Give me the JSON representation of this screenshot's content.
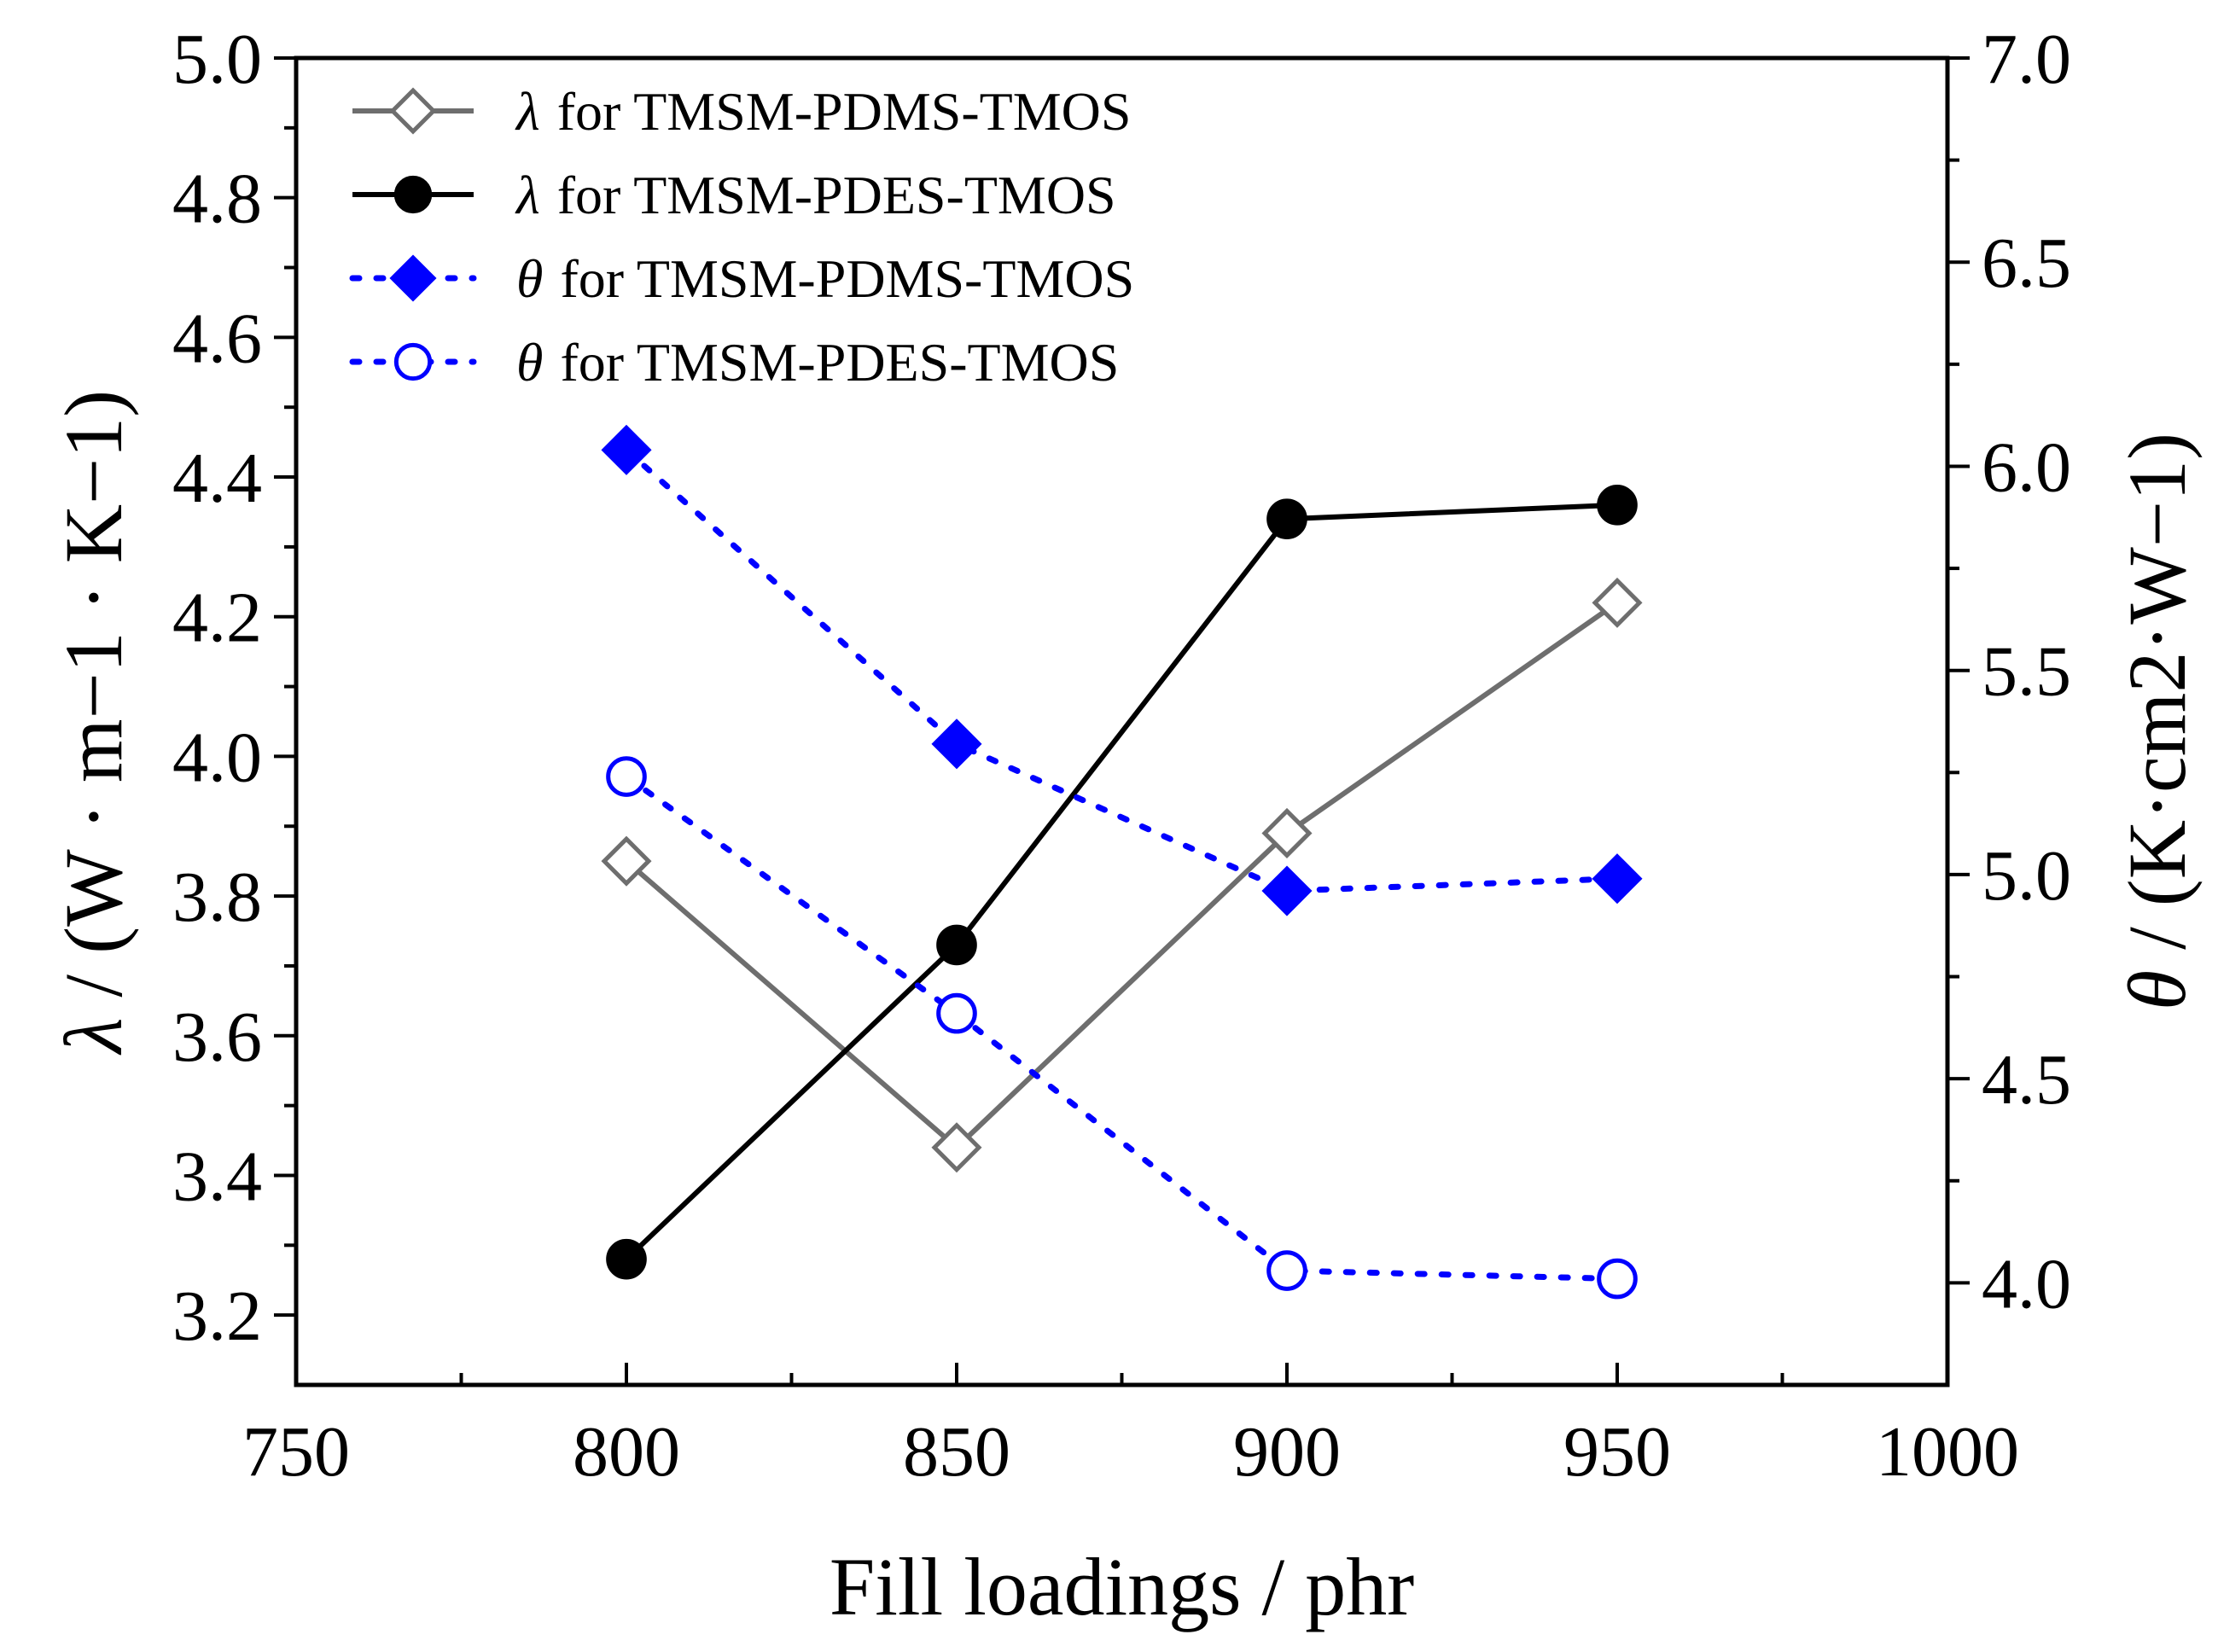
{
  "chart_data": {
    "type": "line",
    "x_axis": {
      "label": "Fill loadings / phr",
      "range": [
        750,
        1000
      ],
      "major_ticks": [
        750,
        800,
        850,
        900,
        950,
        1000
      ],
      "tick_labels": [
        "750",
        "800",
        "850",
        "900",
        "950",
        "1000"
      ],
      "minor_ticks": [
        775,
        825,
        875,
        925,
        975
      ]
    },
    "y_left": {
      "symbol": "λ",
      "label_unit": " / (W · m−1 · K−1)",
      "label_full": "λ / (W·m−1·K−1)",
      "range": [
        3.1,
        5.0
      ],
      "major_ticks": [
        3.2,
        3.4,
        3.6,
        3.8,
        4.0,
        4.2,
        4.4,
        4.6,
        4.8,
        5.0
      ],
      "tick_labels": [
        "3.2",
        "3.4",
        "3.6",
        "3.8",
        "4.0",
        "4.2",
        "4.4",
        "4.6",
        "4.8",
        "5.0"
      ],
      "minor_ticks": [
        3.3,
        3.5,
        3.7,
        3.9,
        4.1,
        4.3,
        4.5,
        4.7,
        4.9
      ]
    },
    "y_right": {
      "symbol": "θ",
      "label_unit": " / (K·cm2·W−1)",
      "label_full": "θ / (K·cm2·W−1)",
      "range": [
        3.75,
        7.0
      ],
      "major_ticks": [
        4.0,
        4.5,
        5.0,
        5.5,
        6.0,
        6.5,
        7.0
      ],
      "tick_labels": [
        "4.0",
        "4.5",
        "5.0",
        "5.5",
        "6.0",
        "6.5",
        "7.0"
      ],
      "minor_ticks": [
        4.25,
        4.75,
        5.25,
        5.75,
        6.25,
        6.75
      ]
    },
    "x": [
      800,
      850,
      900,
      950
    ],
    "series": [
      {
        "name": "λ for TMSM-PDMS-TMOS",
        "symbol": "λ",
        "legend_text": "for TMSM-PDMS-TMOS",
        "axis": "left",
        "values": [
          3.85,
          3.44,
          3.89,
          4.22
        ],
        "color": "#6e6e6e",
        "line_style": "solid",
        "marker": "diamond-open"
      },
      {
        "name": "λ for TMSM-PDES-TMOS",
        "symbol": "λ",
        "legend_text": "for TMSM-PDES-TMOS",
        "axis": "left",
        "values": [
          3.28,
          3.73,
          4.34,
          4.36
        ],
        "color": "#000000",
        "line_style": "solid",
        "marker": "circle-filled"
      },
      {
        "name": "θ for TMSM-PDMS-TMOS",
        "symbol": "θ",
        "legend_text": "for TMSM-PDMS-TMOS",
        "axis": "right",
        "values": [
          6.04,
          5.32,
          4.96,
          4.99
        ],
        "color": "#0000ff",
        "line_style": "dotted",
        "marker": "diamond-filled"
      },
      {
        "name": "θ for TMSM-PDES-TMOS",
        "symbol": "θ",
        "legend_text": "for TMSM-PDES-TMOS",
        "axis": "right",
        "values": [
          5.24,
          4.66,
          4.03,
          4.01
        ],
        "color": "#0000ff",
        "line_style": "dotted",
        "marker": "circle-open"
      }
    ],
    "legend_position": "top-left",
    "grid": false
  }
}
